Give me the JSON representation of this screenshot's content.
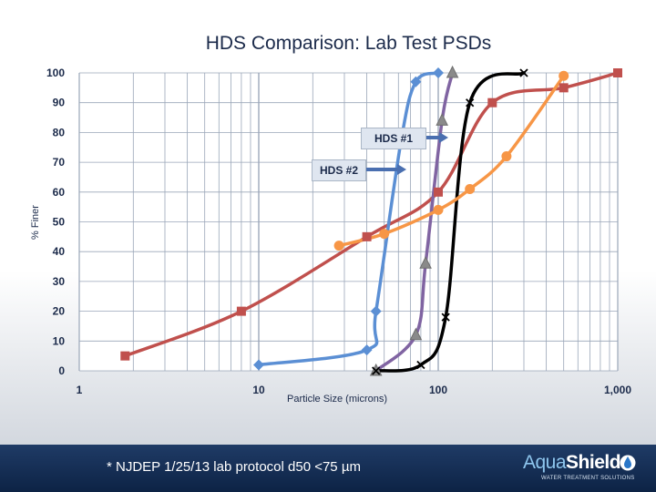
{
  "chart_data": {
    "type": "line",
    "title": "HDS Comparison: Lab Test PSDs",
    "xlabel": "Particle Size (microns)",
    "ylabel": "% Finer",
    "xscale": "log",
    "xlim": [
      1,
      1000
    ],
    "ylim": [
      0,
      100
    ],
    "x_tick_labels": [
      "1",
      "10",
      "100",
      "1,000"
    ],
    "y_tick_labels": [
      "0",
      "10",
      "20",
      "30",
      "40",
      "50",
      "60",
      "70",
      "80",
      "90",
      "100"
    ],
    "grid": true,
    "series": [
      {
        "color": "#c0504d",
        "marker": "square",
        "x": [
          1.8,
          8,
          40,
          100,
          200,
          500,
          1000
        ],
        "y": [
          5,
          20,
          45,
          60,
          90,
          95,
          100
        ]
      },
      {
        "color": "#5b8fd4",
        "marker": "diamond",
        "x": [
          10,
          40,
          45,
          62,
          75,
          100
        ],
        "y": [
          2,
          7,
          20,
          77,
          97,
          100
        ]
      },
      {
        "color": "#8064a2",
        "marker": "triangle",
        "x": [
          45,
          75,
          85,
          105,
          120
        ],
        "y": [
          0,
          12,
          36,
          84,
          100
        ]
      },
      {
        "color": "#000000",
        "marker": "x",
        "x": [
          45,
          80,
          110,
          150,
          300
        ],
        "y": [
          0,
          2,
          18,
          90,
          100
        ]
      },
      {
        "color": "#f79646",
        "marker": "circle",
        "x": [
          28,
          50,
          100,
          150,
          240,
          500
        ],
        "y": [
          42,
          46,
          54,
          61,
          72,
          99
        ]
      }
    ]
  },
  "callouts": {
    "hds1": "HDS #1",
    "hds2": "HDS #2"
  },
  "footnote": "* NJDEP 1/25/13 lab protocol d50 <75 µm",
  "logo": {
    "brand_part1": "Aqua",
    "brand_part2": "Shield",
    "tagline": "WATER TREATMENT SOLUTIONS"
  }
}
